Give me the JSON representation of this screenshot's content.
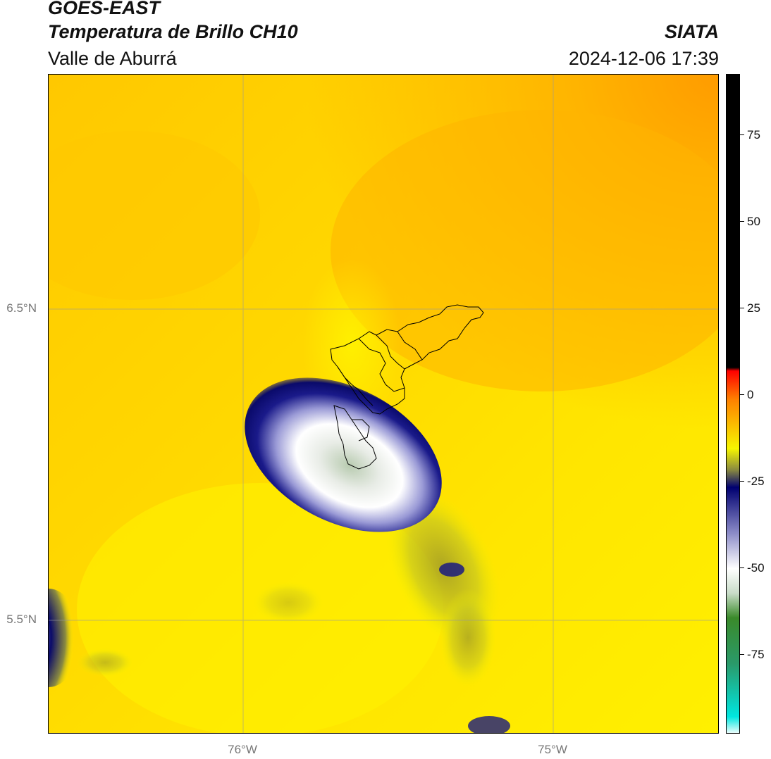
{
  "header": {
    "satellite": "GOES-EAST",
    "product": "Temperatura de Brillo CH10",
    "organization": "SIATA",
    "region": "Valle de Aburrá",
    "timestamp": "2024-12-06 17:39"
  },
  "map": {
    "lat_labels": [
      "6.5°N",
      "5.5°N"
    ],
    "lon_labels": [
      "76°W",
      "75°W"
    ],
    "colors": {
      "warm_yellow": "#ffef00",
      "orange": "#ffb000",
      "deep_orange": "#ff9a00",
      "olive": "#a8a82a",
      "navy": "#0a0a7a",
      "lavender": "#9a9ad6",
      "pale_green": "#c8d8c0",
      "boundary": "#000000"
    }
  },
  "colorbar": {
    "ticks": [
      "75",
      "50",
      "25",
      "0",
      "-25",
      "-50",
      "-75"
    ],
    "stops": [
      {
        "value": -95,
        "color": "#ffffff"
      },
      {
        "value": -90,
        "color": "#00e6e0"
      },
      {
        "value": -75,
        "color": "#2a9a6a"
      },
      {
        "value": -62,
        "color": "#3a8a2a"
      },
      {
        "value": -55,
        "color": "#c8dcc8"
      },
      {
        "value": -48,
        "color": "#ffffff"
      },
      {
        "value": -38,
        "color": "#8c8cc8"
      },
      {
        "value": -25,
        "color": "#000070"
      },
      {
        "value": -20,
        "color": "#8a8a40"
      },
      {
        "value": -14,
        "color": "#f6f600"
      },
      {
        "value": 0,
        "color": "#ff8000"
      },
      {
        "value": 8,
        "color": "#ff0000"
      },
      {
        "value": 9,
        "color": "#000000"
      },
      {
        "value": 92,
        "color": "#000000"
      }
    ],
    "range": [
      -95,
      92
    ]
  }
}
